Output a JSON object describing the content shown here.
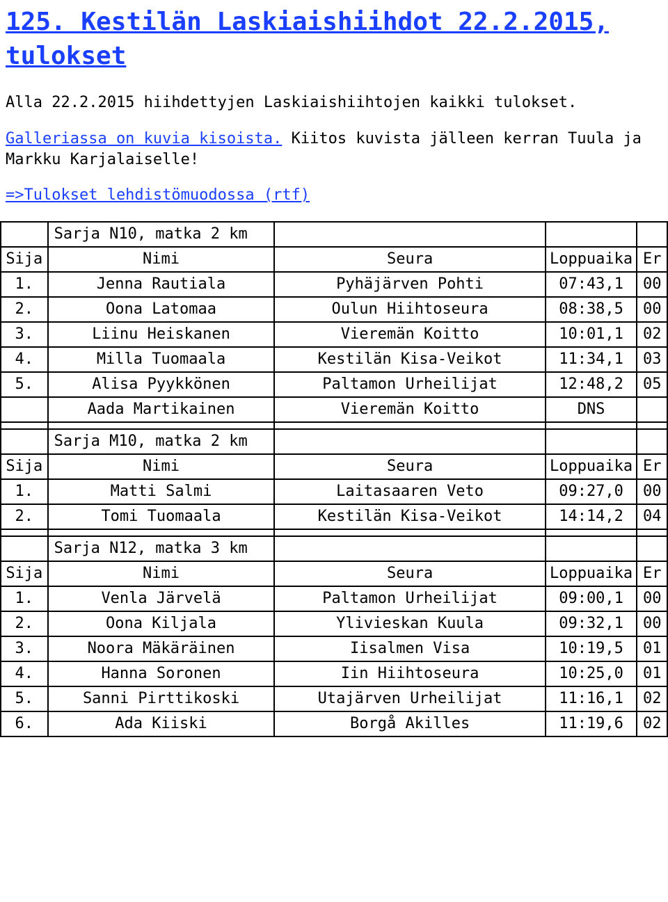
{
  "title": "125. Kestilän Laskiaishiihdot 22.2.2015, tulokset",
  "intro1": "Alla 22.2.2015 hiihdettyjen Laskiaishiihtojen kaikki tulokset.",
  "intro2a": "Galleriassa on kuvia kisoista.",
  "intro2b": " Kiitos kuvista jälleen kerran Tuula ja Markku Karjalaiselle!",
  "link2": "=>Tulokset lehdistömuodossa (rtf)",
  "headers": {
    "sija": "Sija",
    "nimi": "Nimi",
    "seura": "Seura",
    "loppuaika": "Loppuaika",
    "ero": "Er"
  },
  "sections": [
    {
      "title": "Sarja N10, matka 2 km",
      "rows": [
        {
          "p": "1.",
          "n": "Jenna Rautiala",
          "s": "Pyhäjärven Pohti",
          "t": "07:43,1",
          "d": "00"
        },
        {
          "p": "2.",
          "n": "Oona Latomaa",
          "s": "Oulun Hiihtoseura",
          "t": "08:38,5",
          "d": "00"
        },
        {
          "p": "3.",
          "n": "Liinu Heiskanen",
          "s": "Vieremän Koitto",
          "t": "10:01,1",
          "d": "02"
        },
        {
          "p": "4.",
          "n": "Milla Tuomaala",
          "s": "Kestilän Kisa-Veikot",
          "t": "11:34,1",
          "d": "03"
        },
        {
          "p": "5.",
          "n": "Alisa Pyykkönen",
          "s": "Paltamon Urheilijat",
          "t": "12:48,2",
          "d": "05"
        },
        {
          "p": "",
          "n": "Aada Martikainen",
          "s": "Vieremän Koitto",
          "t": "DNS",
          "d": ""
        }
      ]
    },
    {
      "title": "Sarja M10, matka 2 km",
      "rows": [
        {
          "p": "1.",
          "n": "Matti Salmi",
          "s": "Laitasaaren Veto",
          "t": "09:27,0",
          "d": "00"
        },
        {
          "p": "2.",
          "n": "Tomi Tuomaala",
          "s": "Kestilän Kisa-Veikot",
          "t": "14:14,2",
          "d": "04"
        }
      ]
    },
    {
      "title": "Sarja N12, matka 3 km",
      "rows": [
        {
          "p": "1.",
          "n": "Venla Järvelä",
          "s": "Paltamon Urheilijat",
          "t": "09:00,1",
          "d": "00"
        },
        {
          "p": "2.",
          "n": "Oona Kiljala",
          "s": "Ylivieskan Kuula",
          "t": "09:32,1",
          "d": "00"
        },
        {
          "p": "3.",
          "n": "Noora Mäkäräinen",
          "s": "Iisalmen Visa",
          "t": "10:19,5",
          "d": "01"
        },
        {
          "p": "4.",
          "n": "Hanna Soronen",
          "s": "Iin Hiihtoseura",
          "t": "10:25,0",
          "d": "01"
        },
        {
          "p": "5.",
          "n": "Sanni Pirttikoski",
          "s": "Utajärven Urheilijat",
          "t": "11:16,1",
          "d": "02"
        },
        {
          "p": "6.",
          "n": "Ada Kiiski",
          "s": "Borgå Akilles",
          "t": "11:19,6",
          "d": "02"
        }
      ]
    }
  ]
}
